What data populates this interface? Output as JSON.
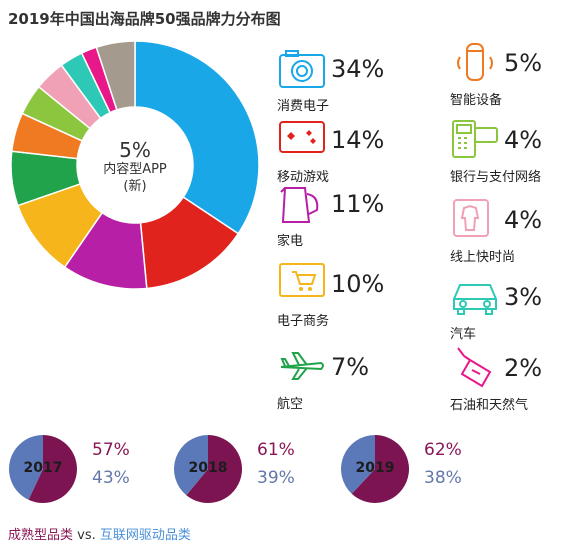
{
  "title": "2019年中国出海品牌50强品牌力分布图",
  "chart_data": {
    "type": "pie",
    "center_value": "5%",
    "center_label_1": "内容型APP",
    "center_label_2": "(新)",
    "slices": [
      {
        "label": "消费电子",
        "value": 34,
        "display": "34%",
        "color": "#19a7e8"
      },
      {
        "label": "移动游戏",
        "value": 14,
        "display": "14%",
        "color": "#e0231c"
      },
      {
        "label": "家电",
        "value": 11,
        "display": "11%",
        "color": "#b61fa6"
      },
      {
        "label": "电子商务",
        "value": 10,
        "display": "10%",
        "color": "#f5b51b"
      },
      {
        "label": "航空",
        "value": 7,
        "display": "7%",
        "color": "#20a34a"
      },
      {
        "label": "智能设备",
        "value": 5,
        "display": "5%",
        "color": "#f07a22"
      },
      {
        "label": "银行与支付网络",
        "value": 4,
        "display": "4%",
        "color": "#8cc63f"
      },
      {
        "label": "线上快时尚",
        "value": 4,
        "display": "4%",
        "color": "#f0a1b6"
      },
      {
        "label": "汽车",
        "value": 3,
        "display": "3%",
        "color": "#2ec9b6"
      },
      {
        "label": "石油和天然气",
        "value": 2,
        "display": "2%",
        "color": "#e8178a"
      },
      {
        "label": "内容型APP (新)",
        "value": 5,
        "display": "5%",
        "color": "#a59a8e"
      }
    ],
    "comparison": [
      {
        "year": "2017",
        "mature": 57,
        "internet": 43,
        "mature_display": "57%",
        "internet_display": "43%"
      },
      {
        "year": "2018",
        "mature": 61,
        "internet": 39,
        "mature_display": "61%",
        "internet_display": "39%"
      },
      {
        "year": "2019",
        "mature": 62,
        "internet": 38,
        "mature_display": "62%",
        "internet_display": "38%"
      }
    ],
    "comparison_colors": {
      "mature": "#7d1452",
      "internet": "#5b79b8"
    },
    "legend": {
      "mature": "成熟型品类",
      "vs": "vs.",
      "internet": "互联网驱动品类"
    }
  },
  "icons": {
    "消费电子": "camera-icon",
    "移动游戏": "game-icon",
    "家电": "kettle-icon",
    "电子商务": "cart-icon",
    "航空": "airplane-icon",
    "智能设备": "smart-speaker-icon",
    "银行与支付网络": "pos-terminal-icon",
    "线上快时尚": "fashion-icon",
    "汽车": "car-icon",
    "石油和天然气": "oil-bottle-icon"
  }
}
